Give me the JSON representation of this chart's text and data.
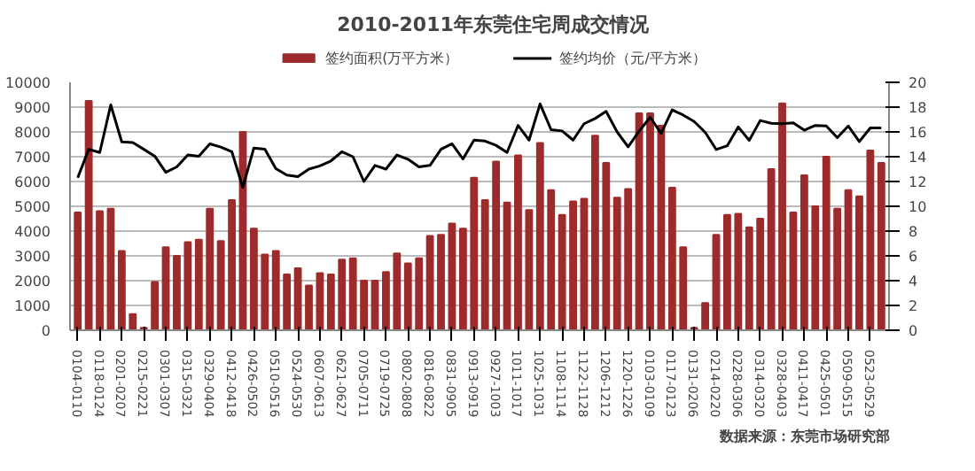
{
  "chart_data": {
    "type": "bar",
    "title": "2010-2011年东莞住宅周成交情况",
    "categories": [
      "0104-0110",
      null,
      "0118-0124",
      null,
      "0201-0207",
      null,
      "0215-0221",
      null,
      "0301-0307",
      null,
      "0315-0321",
      null,
      "0329-0404",
      null,
      "0412-0418",
      null,
      "0426-0502",
      null,
      "0510-0516",
      null,
      "0524-0530",
      null,
      "0607-0613",
      null,
      "0621-0627",
      null,
      "0705-0711",
      null,
      "0719-0725",
      null,
      "0802-0808",
      null,
      "0816-0822",
      null,
      "0831-0905",
      null,
      "0913-0919",
      null,
      "0927-1003",
      null,
      "1011-1017",
      null,
      "1025-1031",
      null,
      "1108-1114",
      null,
      "1122-1128",
      null,
      "1206-1212",
      null,
      "1220-1226",
      null,
      "0103-0109",
      null,
      "0117-0123",
      null,
      "0131-0206",
      null,
      "0214-0220",
      null,
      "0228-0306",
      null,
      "0314-0320",
      null,
      "0328-0403",
      null,
      "0411-0417",
      null,
      "0425-0501",
      null,
      "0509-0515",
      null,
      "0523-0529",
      null
    ],
    "series": [
      {
        "name": "签约面积(万平方米）",
        "axis": "y2",
        "color": "#9e2b2b",
        "values": [
          9.5,
          18.5,
          9.6,
          9.8,
          6.4,
          1.3,
          0.2,
          3.9,
          6.7,
          6.0,
          7.1,
          7.3,
          9.8,
          7.2,
          10.5,
          16.0,
          8.2,
          6.1,
          6.4,
          4.5,
          5.0,
          3.6,
          4.6,
          4.5,
          5.7,
          5.8,
          4.0,
          4.0,
          4.7,
          6.2,
          5.4,
          5.8,
          7.6,
          7.7,
          8.6,
          8.2,
          12.3,
          10.5,
          13.6,
          10.3,
          14.1,
          9.7,
          15.1,
          11.3,
          9.3,
          10.4,
          10.6,
          15.7,
          13.5,
          10.7,
          11.4,
          17.5,
          17.5,
          16.5,
          11.5,
          6.7,
          0.2,
          2.2,
          7.7,
          9.3,
          9.4,
          8.3,
          9.0,
          13.0,
          18.3,
          9.5,
          12.5,
          10.0,
          14.0,
          9.8,
          11.3,
          10.8,
          14.5,
          13.5
        ]
      },
      {
        "name": "签约均价（元/平方米）",
        "type": "line",
        "color": "#000000",
        "values": [
          6150,
          7300,
          7170,
          9090,
          7600,
          7570,
          7300,
          7020,
          6370,
          6590,
          7070,
          7020,
          7520,
          7390,
          7200,
          5760,
          7350,
          7300,
          6520,
          6260,
          6200,
          6500,
          6630,
          6830,
          7200,
          7000,
          6000,
          6650,
          6500,
          7070,
          6900,
          6590,
          6650,
          7300,
          7520,
          6910,
          7670,
          7630,
          7460,
          7170,
          8260,
          7670,
          9130,
          8090,
          8040,
          7670,
          8330,
          8540,
          8830,
          8000,
          7400,
          8030,
          8590,
          7940,
          8890,
          8680,
          8420,
          7980,
          7290,
          7440,
          8200,
          7660,
          8460,
          8350,
          8330,
          8370,
          8070,
          8260,
          8240,
          7770,
          8240,
          7610,
          8160,
          8160
        ]
      }
    ],
    "ylim": [
      0,
      10000
    ],
    "yticks": [
      0,
      1000,
      2000,
      3000,
      4000,
      5000,
      6000,
      7000,
      8000,
      9000,
      10000
    ],
    "y2lim": [
      0,
      20
    ],
    "y2ticks": [
      0,
      2,
      4,
      6,
      8,
      10,
      12,
      14,
      16,
      18,
      20
    ],
    "grid": "y",
    "legend": "top",
    "annotations": [
      "数据来源：东莞市场研究部"
    ]
  }
}
